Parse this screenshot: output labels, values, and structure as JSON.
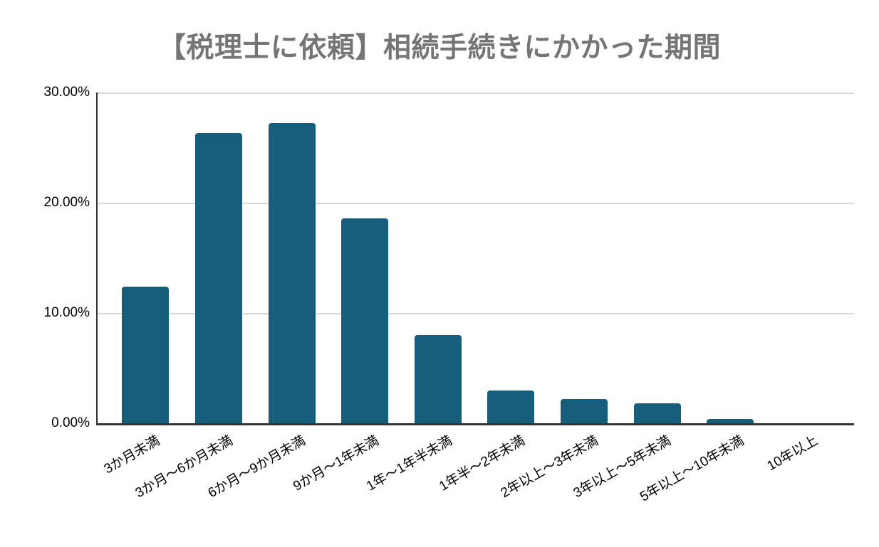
{
  "page": {
    "background_color": "#ffffff"
  },
  "chart_data": {
    "type": "bar",
    "title": "【税理士に依頼】相続手続きにかかった期間",
    "title_color": "#757575",
    "categories": [
      "3か月未満",
      "3か月～6か月未満",
      "6か月～9か月未満",
      "9か月～1年未満",
      "1年～1年半未満",
      "1年半～2年未満",
      "2年以上～3年未満",
      "3年以上～5年未満",
      "5年以上～10年未満",
      "10年以上"
    ],
    "values": [
      12.4,
      26.3,
      27.2,
      18.6,
      8.0,
      3.0,
      2.2,
      1.8,
      0.4,
      0.0
    ],
    "value_unit": "%",
    "xlabel": "",
    "ylabel": "",
    "ylim": [
      0,
      30
    ],
    "y_tick_labels": [
      "0.00%",
      "10.00%",
      "20.00%",
      "30.00%"
    ],
    "y_tick_values": [
      0,
      10,
      20,
      30
    ],
    "grid": true,
    "gridline_color": "#d9d9d9",
    "axis_color": "#333333",
    "bar_color": "#175e7d",
    "legend_position": "none",
    "x_label_rotation_deg": -30
  }
}
